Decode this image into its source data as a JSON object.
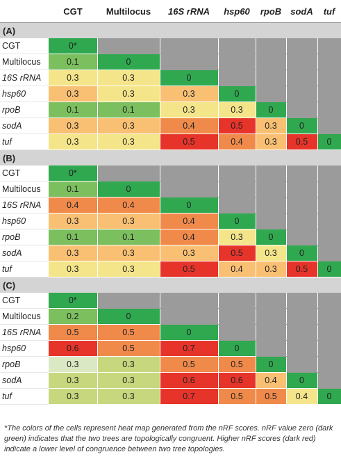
{
  "columns": [
    "CGT",
    "Multilocus",
    "16S rRNA",
    "hsp60",
    "rpoB",
    "sodA",
    "tuf"
  ],
  "row_labels": [
    "CGT",
    "Multilocus",
    "16S rRNA",
    "hsp60",
    "rpoB",
    "sodA",
    "tuf"
  ],
  "italic_labels": [
    "16S rRNA",
    "hsp60",
    "rpoB",
    "sodA",
    "tuf"
  ],
  "colors": {
    "dark_green": "#2fa84f",
    "green": "#7bbf5e",
    "light_green": "#c7d77e",
    "yellow": "#f5e58a",
    "light_orange": "#f9c074",
    "orange": "#f08a4b",
    "red": "#e6342a",
    "gray": "#9b9b9b",
    "section_band": "#d4d4d4"
  },
  "sections": [
    {
      "label": "(A)",
      "rows": [
        [
          "0*"
        ],
        [
          "0.1",
          "0"
        ],
        [
          "0.3",
          "0.3",
          "0"
        ],
        [
          "0.3",
          "0.3",
          "0.3",
          "0"
        ],
        [
          "0.1",
          "0.1",
          "0.3",
          "0.3",
          "0"
        ],
        [
          "0.3",
          "0.3",
          "0.4",
          "0.5",
          "0.3",
          "0"
        ],
        [
          "0.3",
          "0.3",
          "0.5",
          "0.4",
          "0.3",
          "0.5",
          "0"
        ]
      ],
      "colors": [
        [
          "dark_green"
        ],
        [
          "green",
          "dark_green"
        ],
        [
          "yellow",
          "yellow",
          "dark_green"
        ],
        [
          "light_orange",
          "yellow",
          "light_orange",
          "dark_green"
        ],
        [
          "green",
          "green",
          "yellow",
          "yellow",
          "dark_green"
        ],
        [
          "light_orange",
          "light_orange",
          "orange",
          "red",
          "light_orange",
          "dark_green"
        ],
        [
          "yellow",
          "yellow",
          "red",
          "orange",
          "light_orange",
          "red",
          "dark_green"
        ]
      ]
    },
    {
      "label": "(B)",
      "rows": [
        [
          "0*"
        ],
        [
          "0.1",
          "0"
        ],
        [
          "0.4",
          "0.4",
          "0"
        ],
        [
          "0.3",
          "0.3",
          "0.4",
          "0"
        ],
        [
          "0.1",
          "0.1",
          "0.4",
          "0.3",
          "0"
        ],
        [
          "0.3",
          "0.3",
          "0.3",
          "0.5",
          "0.3",
          "0"
        ],
        [
          "0.3",
          "0.3",
          "0.5",
          "0.4",
          "0.3",
          "0.5",
          "0"
        ]
      ],
      "colors": [
        [
          "dark_green"
        ],
        [
          "green",
          "dark_green"
        ],
        [
          "orange",
          "orange",
          "dark_green"
        ],
        [
          "light_orange",
          "light_orange",
          "orange",
          "dark_green"
        ],
        [
          "green",
          "green",
          "orange",
          "yellow",
          "dark_green"
        ],
        [
          "light_orange",
          "light_orange",
          "light_orange",
          "red",
          "yellow",
          "dark_green"
        ],
        [
          "yellow",
          "yellow",
          "red",
          "light_orange",
          "light_orange",
          "red",
          "dark_green"
        ]
      ]
    },
    {
      "label": "(C)",
      "rows": [
        [
          "0*"
        ],
        [
          "0.2",
          "0"
        ],
        [
          "0.5",
          "0.5",
          "0"
        ],
        [
          "0.6",
          "0.5",
          "0.7",
          "0"
        ],
        [
          "0.3",
          "0.3",
          "0.5",
          "0.5",
          "0"
        ],
        [
          "0.3",
          "0.3",
          "0.6",
          "0.6",
          "0.4",
          "0"
        ],
        [
          "0.3",
          "0.3",
          "0.7",
          "0.5",
          "0.5",
          "0.4",
          "0"
        ]
      ],
      "colors": [
        [
          "dark_green"
        ],
        [
          "green",
          "dark_green"
        ],
        [
          "orange",
          "orange",
          "dark_green"
        ],
        [
          "red",
          "orange",
          "red",
          "dark_green"
        ],
        [
          "pale_green",
          "light_green",
          "orange",
          "orange",
          "dark_green"
        ],
        [
          "light_green",
          "light_green",
          "red",
          "red",
          "light_orange",
          "dark_green"
        ],
        [
          "light_green",
          "light_green",
          "red",
          "orange",
          "orange",
          "yellow",
          "dark_green"
        ]
      ]
    }
  ],
  "footnote": "*The colors of the cells represent heat map generated from the nRF scores. nRF value zero (dark green) indicates that the two trees are topologically congruent. Higher nRF scores (dark red) indicate a lower level of congruence between two tree topologies."
}
